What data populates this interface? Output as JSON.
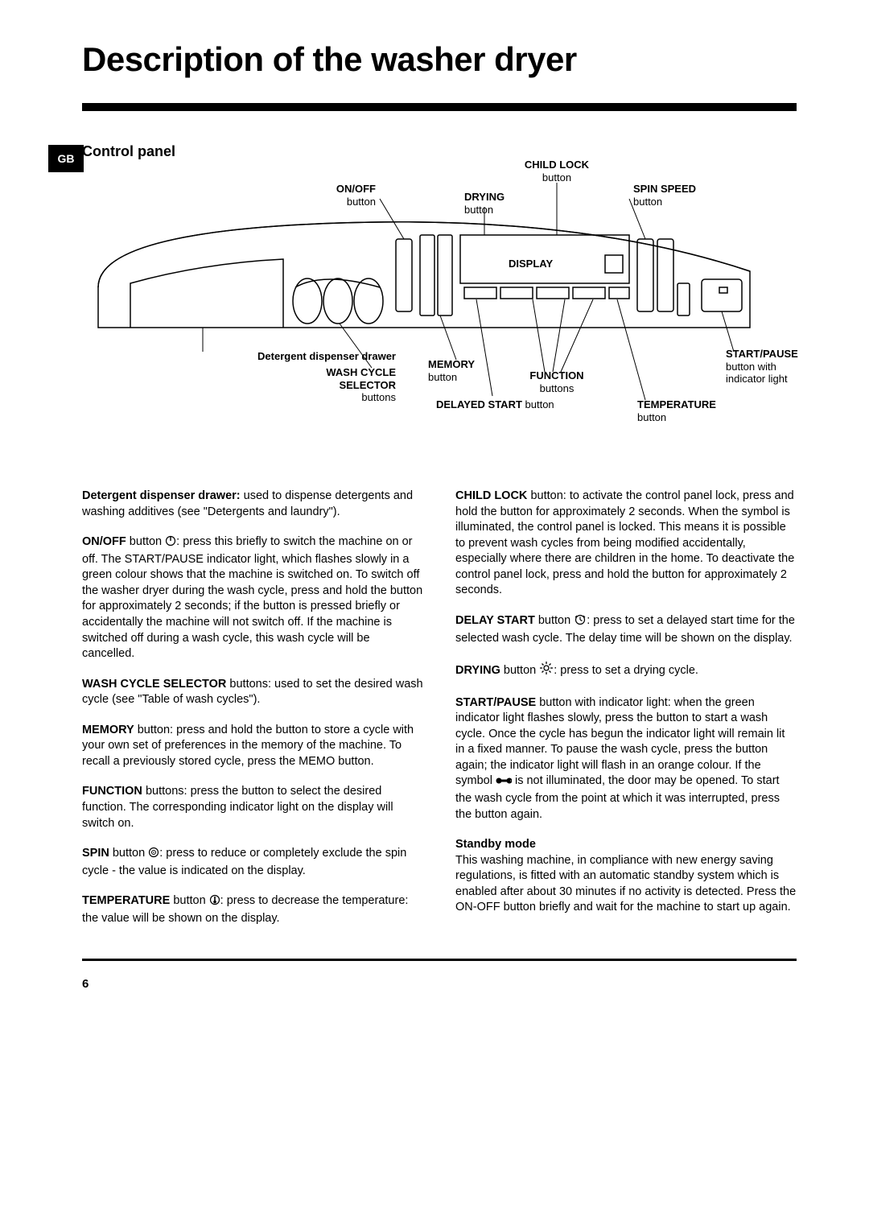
{
  "lang_tab": "GB",
  "title": "Description of the washer dryer",
  "panel_title": "Control panel",
  "labels": {
    "child_lock": {
      "bold": "CHILD LOCK",
      "reg": "button"
    },
    "on_off": {
      "bold": "ON/OFF",
      "reg": "button"
    },
    "drying": {
      "bold": "DRYING",
      "reg": "button"
    },
    "spin_speed": {
      "bold": "SPIN SPEED",
      "reg": "button"
    },
    "display": {
      "bold": "DISPLAY"
    },
    "detergent": {
      "bold": "Detergent dispenser drawer"
    },
    "wash_cycle": {
      "bold": "WASH CYCLE SELECTOR",
      "reg": "buttons"
    },
    "memory": {
      "bold": "MEMORY",
      "reg": "button"
    },
    "function": {
      "bold": "FUNCTION",
      "reg": "buttons"
    },
    "delayed_start": {
      "bold": "DELAYED START",
      "reg": " button"
    },
    "start_pause": {
      "bold": "START/PAUSE",
      "reg": "button with indicator light"
    },
    "temperature": {
      "bold": "TEMPERATURE",
      "reg": "button"
    }
  },
  "body": {
    "left": [
      {
        "b": "Detergent dispenser drawer:",
        "t": " used to dispense detergents and washing additives (see \"Detergents and laundry\")."
      },
      {
        "b": "ON/OFF",
        "t": " button ",
        "icon": "power",
        "after": ": press this briefly to switch the machine on or off. The START/PAUSE indicator light, which flashes slowly in a green colour shows that the machine is switched on. To switch off the washer dryer during the wash cycle, press and hold the button for approximately 2 seconds; if the button is pressed briefly or accidentally the machine will not switch off. If the machine is switched off during a wash cycle, this wash cycle will be cancelled."
      },
      {
        "b": "WASH CYCLE SELECTOR",
        "t": " buttons: used to set the desired wash cycle (see \"Table of wash cycles\")."
      },
      {
        "b": "MEMORY",
        "t": " button: press and hold the button to store a cycle with your own set of preferences in the memory of the machine. To recall a previously stored cycle, press the MEMO button."
      },
      {
        "b": "FUNCTION",
        "t": " buttons: press the button to select the desired function. The corresponding indicator light on the display will switch on."
      },
      {
        "b": "SPIN",
        "t": " button ",
        "icon": "spin",
        "after": ": press to reduce or completely exclude the spin cycle - the value is indicated on the display."
      },
      {
        "b": "TEMPERATURE",
        "t": " button ",
        "icon": "temp",
        "after": ": press to decrease the temperature: the value will be shown on the display."
      }
    ],
    "right": [
      {
        "b": "CHILD LOCK",
        "t": " button: to activate the control panel lock, press and hold the button for approximately 2 seconds. When the symbol is illuminated, the control panel is locked. This means it is possible to prevent wash cycles from being modified accidentally, especially where there are children in the home. To deactivate the control panel lock, press and hold the button for approximately 2 seconds."
      },
      {
        "b": "DELAY START",
        "t": " button ",
        "icon": "clock",
        "after": ": press to set a delayed start time for the selected wash cycle. The delay time will be shown on the display."
      },
      {
        "b": "DRYING",
        "t": " button ",
        "icon": "sun",
        "after": ": press to set a drying cycle."
      },
      {
        "b": "START/PAUSE",
        "t": " button with indicator light: when the green indicator light flashes slowly, press the button to start a wash cycle. Once the cycle has begun the indicator light will remain lit in a fixed manner. To pause the wash cycle, press the button again; the indicator light will flash in an orange colour. If the symbol ",
        "icon": "lock",
        "after": " is not illuminated, the door may be opened. To start the wash cycle from the point at which it was interrupted, press the button again."
      },
      {
        "b": "Standby mode",
        "t": "",
        "plain": "This washing machine, in compliance with new energy saving regulations, is fitted with an automatic standby system which is enabled after about 30 minutes if no activity is detected. Press the ON-OFF button briefly and wait for the machine to start up again."
      }
    ]
  },
  "page_number": "6",
  "style": {
    "page_bg": "#ffffff",
    "text_color": "#000000",
    "rule_color": "#000000",
    "diagram_stroke": "#000000",
    "diagram_fill": "#ffffff",
    "title_fontsize": 42,
    "body_fontsize": 14.5
  },
  "icons": {
    "power": "<svg width='14' height='14' viewBox='0 0 14 14'><circle cx='7' cy='7' r='5.5' fill='none' stroke='#000' stroke-width='1.2'/><line x1='7' y1='1' x2='7' y2='7' stroke='#000' stroke-width='1.4'/></svg>",
    "spin": "<svg width='14' height='14' viewBox='0 0 14 14'><circle cx='7' cy='7' r='5.5' fill='none' stroke='#000' stroke-width='1.2'/><circle cx='7' cy='7' r='2.5' fill='none' stroke='#000' stroke-width='1'/><circle cx='7' cy='7' r='0.8' fill='#000'/></svg>",
    "temp": "<svg width='14' height='14' viewBox='0 0 14 14'><circle cx='7' cy='7' r='5.5' fill='none' stroke='#000' stroke-width='1.2'/><rect x='6.2' y='3' width='1.6' height='5' fill='#000'/><circle cx='7' cy='9.5' r='1.8' fill='#000'/></svg>",
    "clock": "<svg width='16' height='14' viewBox='0 0 16 14'><circle cx='8' cy='7' r='5.5' fill='none' stroke='#000' stroke-width='1.2'/><path d='M8 7 L8 3.5 M8 7 L10.5 8.5' stroke='#000' stroke-width='1.2' fill='none'/><path d='M2 4 L4 2 M14 4 L12 2' stroke='#000' stroke-width='1.2'/></svg>",
    "sun": "<svg width='18' height='18' viewBox='0 0 18 18'><circle cx='9' cy='9' r='3' fill='none' stroke='#000' stroke-width='1.3'/><g stroke='#000' stroke-width='1.3'><line x1='9' y1='1' x2='9' y2='4'/><line x1='9' y1='14' x2='9' y2='17'/><line x1='1' y1='9' x2='4' y2='9'/><line x1='14' y1='9' x2='17' y2='9'/><line x1='3.5' y1='3.5' x2='5.5' y2='5.5'/><line x1='12.5' y1='12.5' x2='14.5' y2='14.5'/><line x1='14.5' y1='3.5' x2='12.5' y2='5.5'/><line x1='5.5' y1='12.5' x2='3.5' y2='14.5'/></g></svg>",
    "lock": "<svg width='20' height='12' viewBox='0 0 20 12'><circle cx='4' cy='6' r='3.5' fill='#000'/><rect x='4' y='4.5' width='14' height='3' fill='#000'/><circle cx='17' cy='6' r='2.5' fill='none' stroke='#000' stroke-width='2'/></svg>"
  }
}
